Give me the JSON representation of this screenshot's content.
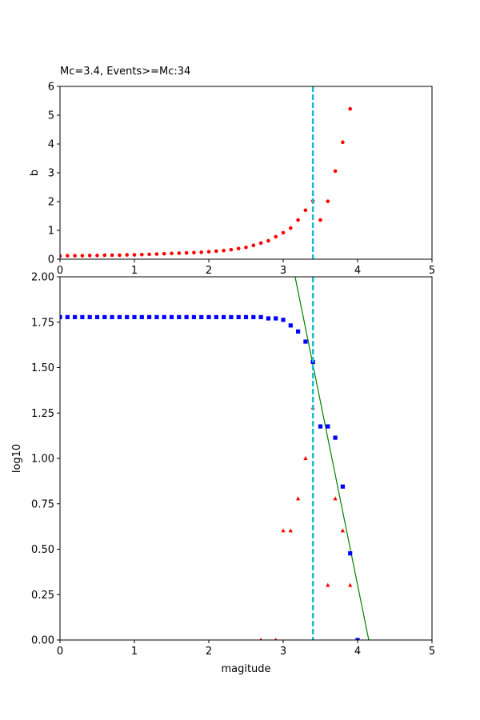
{
  "chart_data": [
    {
      "type": "scatter",
      "title": "Mc=3.4, Events>=Mc:34",
      "xlabel": "",
      "ylabel": "b",
      "xlim": [
        0,
        5
      ],
      "ylim": [
        0,
        6
      ],
      "xticks": [
        "0",
        "1",
        "2",
        "3",
        "4",
        "5"
      ],
      "yticks": [
        "0",
        "1",
        "2",
        "3",
        "4",
        "5",
        "6"
      ],
      "grid": false,
      "mc_line": 3.4,
      "mc_color": "#17becf",
      "series": [
        {
          "marker": "circle",
          "color": "#ff0000",
          "x": [
            0.0,
            0.1,
            0.2,
            0.3,
            0.4,
            0.5,
            0.6,
            0.7,
            0.8,
            0.9,
            1.0,
            1.1,
            1.2,
            1.3,
            1.4,
            1.5,
            1.6,
            1.7,
            1.8,
            1.9,
            2.0,
            2.1,
            2.2,
            2.3,
            2.4,
            2.5,
            2.6,
            2.7,
            2.8,
            2.9,
            3.0,
            3.1,
            3.2,
            3.3,
            3.4,
            3.5,
            3.6,
            3.7,
            3.8,
            3.9
          ],
          "y": [
            0.11,
            0.12,
            0.12,
            0.12,
            0.13,
            0.13,
            0.14,
            0.14,
            0.14,
            0.15,
            0.15,
            0.16,
            0.17,
            0.18,
            0.19,
            0.2,
            0.21,
            0.22,
            0.23,
            0.24,
            0.26,
            0.28,
            0.3,
            0.33,
            0.37,
            0.41,
            0.48,
            0.56,
            0.64,
            0.78,
            0.92,
            1.08,
            1.36,
            1.7,
            2.02,
            1.36,
            2.01,
            3.06,
            4.06,
            5.22
          ]
        }
      ]
    },
    {
      "type": "scatter",
      "title": "",
      "xlabel": "magitude",
      "ylabel": "log10",
      "xlim": [
        0,
        5
      ],
      "ylim": [
        0,
        2
      ],
      "xticks": [
        "0",
        "1",
        "2",
        "3",
        "4",
        "5"
      ],
      "yticks": [
        "0.00",
        "0.25",
        "0.50",
        "0.75",
        "1.00",
        "1.25",
        "1.50",
        "1.75",
        "2.00"
      ],
      "grid": false,
      "mc_line": 3.4,
      "mc_color": "#17becf",
      "fit_line": {
        "x": [
          3.16,
          4.15
        ],
        "y": [
          2.0,
          0.0
        ],
        "color": "#008000"
      },
      "series": [
        {
          "name": "",
          "marker": "square",
          "color": "#0000ff",
          "x": [
            0.0,
            0.1,
            0.2,
            0.3,
            0.4,
            0.5,
            0.6,
            0.7,
            0.8,
            0.9,
            1.0,
            1.1,
            1.2,
            1.3,
            1.4,
            1.5,
            1.6,
            1.7,
            1.8,
            1.9,
            2.0,
            2.1,
            2.2,
            2.3,
            2.4,
            2.5,
            2.6,
            2.7,
            2.8,
            2.9,
            3.0,
            3.1,
            3.2,
            3.3,
            3.4,
            3.5,
            3.6,
            3.7,
            3.8,
            3.9,
            4.0
          ],
          "y": [
            1.778,
            1.778,
            1.778,
            1.778,
            1.778,
            1.778,
            1.778,
            1.778,
            1.778,
            1.778,
            1.778,
            1.778,
            1.778,
            1.778,
            1.778,
            1.778,
            1.778,
            1.778,
            1.778,
            1.778,
            1.778,
            1.778,
            1.778,
            1.778,
            1.778,
            1.778,
            1.778,
            1.778,
            1.771,
            1.771,
            1.763,
            1.732,
            1.699,
            1.643,
            1.531,
            1.176,
            1.176,
            1.114,
            0.845,
            0.477,
            0.0
          ]
        },
        {
          "name": "",
          "marker": "triangle",
          "color": "#ff0000",
          "x": [
            2.7,
            2.9,
            3.0,
            3.1,
            3.2,
            3.3,
            3.4,
            3.6,
            3.7,
            3.8,
            3.9
          ],
          "y": [
            0.0,
            0.0,
            0.602,
            0.602,
            0.778,
            1.0,
            1.279,
            0.301,
            0.778,
            0.602,
            0.301
          ]
        }
      ]
    }
  ]
}
